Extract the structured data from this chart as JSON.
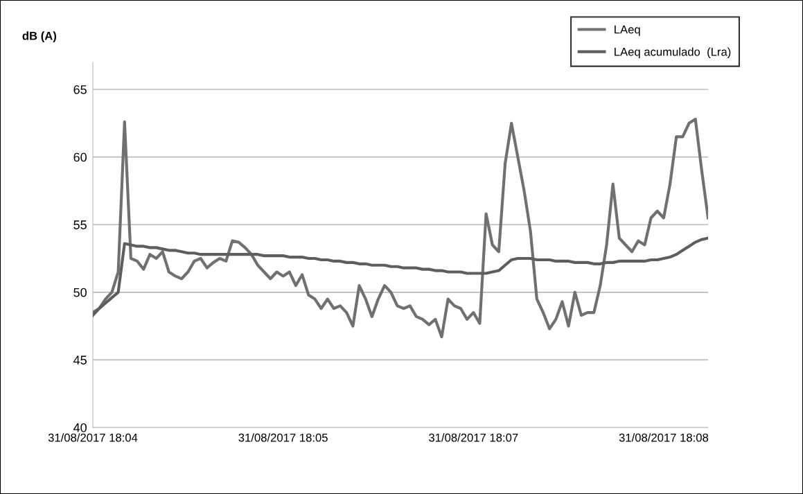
{
  "chart_data": {
    "type": "line",
    "ylabel": "dB (A)",
    "categories": [
      "31/08/2017 18:04",
      null,
      null,
      null,
      null,
      null,
      null,
      null,
      null,
      null,
      null,
      null,
      null,
      null,
      null,
      null,
      null,
      null,
      null,
      null,
      null,
      null,
      null,
      null,
      null,
      null,
      null,
      null,
      null,
      null,
      "31/08/2017 18:05",
      null,
      null,
      null,
      null,
      null,
      null,
      null,
      null,
      null,
      null,
      null,
      null,
      null,
      null,
      null,
      null,
      null,
      null,
      null,
      null,
      null,
      null,
      null,
      null,
      null,
      null,
      null,
      null,
      null,
      "31/08/2017 18:07",
      null,
      null,
      null,
      null,
      null,
      null,
      null,
      null,
      null,
      null,
      null,
      null,
      null,
      null,
      null,
      null,
      null,
      null,
      null,
      null,
      null,
      null,
      null,
      null,
      null,
      null,
      null,
      null,
      null,
      "31/08/2017 18:08",
      null,
      null,
      null,
      null,
      null,
      null,
      null
    ],
    "series": [
      {
        "name": "LAeq",
        "color": "#707070",
        "values": [
          48.5,
          48.8,
          49.5,
          50.0,
          51.5,
          62.6,
          52.5,
          52.3,
          51.7,
          52.8,
          52.5,
          53.0,
          51.5,
          51.2,
          51.0,
          51.5,
          52.3,
          52.5,
          51.8,
          52.2,
          52.5,
          52.3,
          53.8,
          53.7,
          53.3,
          52.8,
          52.0,
          51.5,
          51.0,
          51.5,
          51.2,
          51.5,
          50.5,
          51.3,
          49.8,
          49.5,
          48.8,
          49.5,
          48.8,
          49.0,
          48.5,
          47.5,
          50.5,
          49.5,
          48.2,
          49.5,
          50.5,
          50.0,
          49.0,
          48.8,
          49.0,
          48.2,
          48.0,
          47.6,
          48.0,
          46.7,
          49.5,
          49.0,
          48.8,
          48.0,
          48.5,
          47.7,
          55.8,
          53.5,
          53.0,
          59.5,
          62.5,
          60.0,
          57.5,
          54.5,
          49.5,
          48.5,
          47.3,
          48.0,
          49.3,
          47.5,
          50.0,
          48.3,
          48.5,
          48.5,
          50.5,
          53.5,
          58.0,
          54.0,
          53.5,
          53.0,
          53.8,
          53.5,
          55.5,
          56.0,
          55.5,
          58.0,
          61.5,
          61.5,
          62.5,
          62.8,
          59.0,
          55.5
        ]
      },
      {
        "name": "LAeq acumulado  (Lra)",
        "color": "#5e5e5e",
        "values": [
          48.3,
          48.8,
          49.2,
          49.6,
          50.0,
          53.6,
          53.5,
          53.4,
          53.4,
          53.3,
          53.3,
          53.2,
          53.1,
          53.1,
          53.0,
          52.9,
          52.9,
          52.8,
          52.8,
          52.8,
          52.8,
          52.8,
          52.8,
          52.8,
          52.8,
          52.8,
          52.8,
          52.7,
          52.7,
          52.7,
          52.7,
          52.6,
          52.6,
          52.6,
          52.5,
          52.5,
          52.4,
          52.4,
          52.3,
          52.3,
          52.2,
          52.2,
          52.1,
          52.1,
          52.0,
          52.0,
          52.0,
          51.9,
          51.9,
          51.8,
          51.8,
          51.8,
          51.7,
          51.7,
          51.6,
          51.6,
          51.5,
          51.5,
          51.5,
          51.4,
          51.4,
          51.4,
          51.4,
          51.5,
          51.6,
          52.0,
          52.4,
          52.5,
          52.5,
          52.5,
          52.4,
          52.4,
          52.4,
          52.3,
          52.3,
          52.3,
          52.2,
          52.2,
          52.2,
          52.1,
          52.1,
          52.2,
          52.2,
          52.3,
          52.3,
          52.3,
          52.3,
          52.3,
          52.4,
          52.4,
          52.5,
          52.6,
          52.8,
          53.1,
          53.4,
          53.7,
          53.9,
          54.0
        ]
      }
    ],
    "ylim": [
      40,
      67
    ],
    "yticks": [
      40,
      45,
      50,
      55,
      60,
      65
    ],
    "grid": "y",
    "legend": "top right",
    "marker": "none",
    "line_style": "solid"
  }
}
